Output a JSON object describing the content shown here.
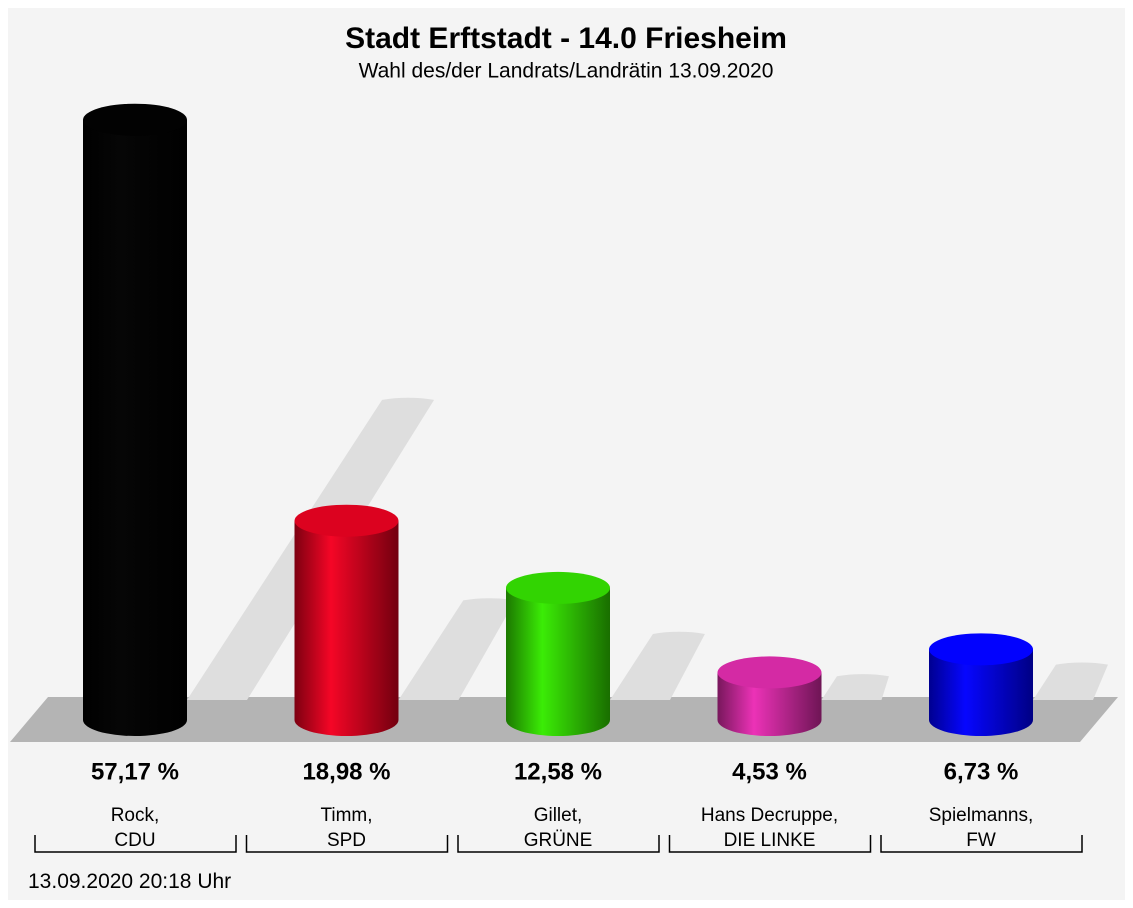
{
  "chart_data": {
    "type": "bar",
    "title": "Stadt Erftstadt - 14.0 Friesheim",
    "subtitle": "Wahl des/der Landrats/Landrätin 13.09.2020",
    "categories": [
      "Rock,\nCDU",
      "Timm,\nSPD",
      "Gillet,\nGRÜNE",
      "Hans Decruppe,\nDIE LINKE",
      "Spielmanns,\nFW"
    ],
    "values": [
      57.17,
      18.98,
      12.58,
      4.53,
      6.73
    ],
    "value_labels": [
      "57,17 %",
      "18,98 %",
      "12,58 %",
      "4,53 %",
      "6,73 %"
    ],
    "colors": [
      "#000000",
      "#d0001c",
      "#2ec800",
      "#c8269a",
      "#0000f0"
    ],
    "footnote": "13.09.2020 20:18 Uhr"
  }
}
